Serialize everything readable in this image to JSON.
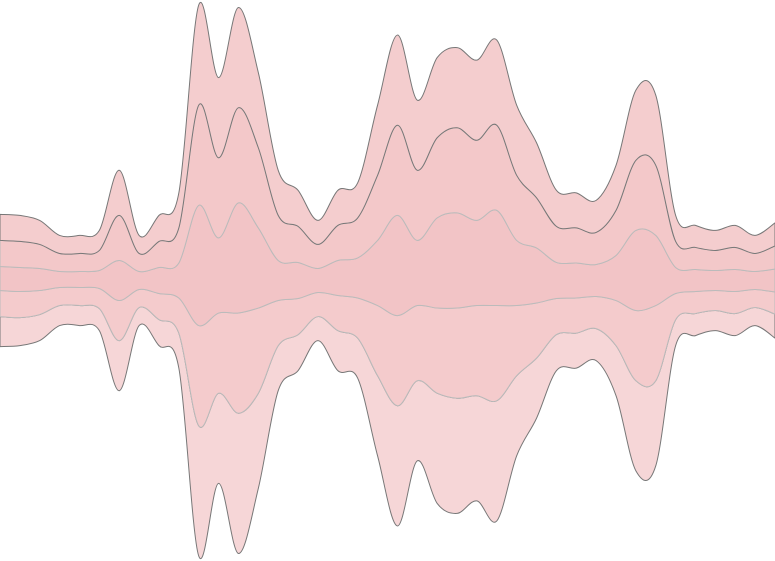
{
  "chart_data": {
    "type": "streamgraph",
    "x": [
      0,
      20,
      40,
      60,
      80,
      100,
      120,
      140,
      160,
      180,
      200,
      220,
      240,
      260,
      280,
      300,
      320,
      340,
      360,
      380,
      400,
      420,
      440,
      460,
      480,
      500,
      520,
      540,
      560,
      580,
      600,
      620,
      640,
      660,
      680,
      700,
      720,
      740,
      760,
      780
    ],
    "xlim": [
      0,
      780
    ],
    "ylim": [
      -280,
      280
    ],
    "series": [
      {
        "color": "#f6d6d7",
        "values": [
          30,
          28,
          26,
          20,
          20,
          22,
          50,
          18,
          26,
          35,
          130,
          90,
          140,
          95,
          45,
          36,
          24,
          40,
          40,
          80,
          120,
          80,
          110,
          115,
          105,
          120,
          80,
          60,
          36,
          35,
          32,
          50,
          90,
          85,
          26,
          22,
          20,
          22,
          18,
          24
        ]
      },
      {
        "color": "#f4cbcc",
        "values": [
          26,
          26,
          24,
          18,
          18,
          20,
          40,
          18,
          26,
          35,
          100,
          80,
          100,
          85,
          45,
          36,
          24,
          35,
          40,
          70,
          90,
          75,
          85,
          90,
          90,
          95,
          70,
          55,
          36,
          35,
          32,
          45,
          70,
          75,
          26,
          22,
          20,
          22,
          18,
          22
        ]
      },
      {
        "color": "#f2c4c6",
        "values": [
          24,
          24,
          22,
          16,
          16,
          18,
          40,
          18,
          26,
          35,
          120,
          75,
          110,
          80,
          40,
          36,
          24,
          35,
          40,
          65,
          100,
          65,
          90,
          95,
          85,
          95,
          65,
          55,
          36,
          35,
          32,
          45,
          80,
          70,
          26,
          22,
          20,
          22,
          18,
          23
        ]
      },
      {
        "color": "#f3c8c9",
        "values": [
          26,
          26,
          24,
          18,
          18,
          20,
          45,
          18,
          26,
          35,
          100,
          80,
          95,
          80,
          45,
          36,
          24,
          35,
          40,
          65,
          90,
          70,
          80,
          85,
          80,
          85,
          65,
          50,
          36,
          35,
          32,
          45,
          70,
          70,
          26,
          22,
          20,
          22,
          18,
          23
        ]
      },
      {
        "color": "#f4cdce",
        "values": [
          26,
          26,
          24,
          18,
          18,
          20,
          45,
          18,
          26,
          35,
          100,
          80,
          100,
          75,
          45,
          36,
          24,
          35,
          35,
          70,
          90,
          70,
          80,
          80,
          80,
          85,
          70,
          55,
          36,
          35,
          32,
          45,
          70,
          70,
          26,
          22,
          20,
          22,
          18,
          23
        ]
      }
    ]
  }
}
